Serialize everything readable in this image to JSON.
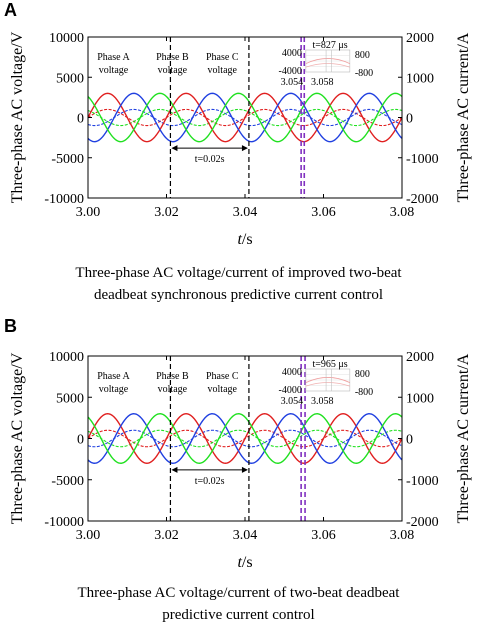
{
  "panels": [
    {
      "letter": "A",
      "caption_lines": [
        "Three-phase AC voltage/current of improved two-beat",
        "deadbeat synchronous predictive current control"
      ],
      "dt_label": "t=827 μs",
      "inset_labels": [
        "4000",
        "-4000",
        "800",
        "-800",
        "3.054",
        "3.058"
      ],
      "chart_data": {
        "type": "line",
        "xlabel": "t/s",
        "ylabel_left": "Three-phase AC voltage/V",
        "ylabel_right": "Three-phase AC current/A",
        "xlim": [
          3.0,
          3.08
        ],
        "ylim_left": [
          -10000,
          10000
        ],
        "ylim_right": [
          -2000,
          2000
        ],
        "x_ticks": [
          "3.00",
          "3.02",
          "3.04",
          "3.06",
          "3.08"
        ],
        "y_ticks_left": [
          "10000",
          "5000",
          "0",
          "-5000",
          "-10000"
        ],
        "y_ticks_right": [
          "2000",
          "1000",
          "0",
          "-1000",
          "-2000"
        ],
        "series": [
          {
            "name": "Phase A voltage",
            "kind": "voltage",
            "amplitude": 3000,
            "frequency_hz": 50,
            "phase_deg": 0,
            "color": "#e02020"
          },
          {
            "name": "Phase B voltage",
            "kind": "voltage",
            "amplitude": 3000,
            "frequency_hz": 50,
            "phase_deg": -120,
            "color": "#2040e0"
          },
          {
            "name": "Phase C voltage",
            "kind": "voltage",
            "amplitude": 3000,
            "frequency_hz": 50,
            "phase_deg": 120,
            "color": "#20e020"
          },
          {
            "name": "",
            "kind": "current",
            "amplitude": 200,
            "frequency_hz": 50,
            "phase_deg": 0,
            "color": "#e02020"
          },
          {
            "name": "",
            "kind": "current",
            "amplitude": 200,
            "frequency_hz": 50,
            "phase_deg": -120,
            "color": "#2040e0"
          },
          {
            "name": "",
            "kind": "current",
            "amplitude": 200,
            "frequency_hz": 50,
            "phase_deg": 120,
            "color": "#20e020"
          }
        ],
        "period_annotation": {
          "label": "t=0.02s",
          "x_start": 3.021,
          "x_end": 3.041
        },
        "markers": [
          {
            "x": 3.0543,
            "color": "#8030c0"
          },
          {
            "x": 3.0551,
            "color": "#8030c0"
          }
        ]
      }
    },
    {
      "letter": "B",
      "caption_lines": [
        "Three-phase AC voltage/current of two-beat deadbeat",
        "predictive current control"
      ],
      "dt_label": "t=965 μs",
      "inset_labels": [
        "4000",
        "-4000",
        "800",
        "-800",
        "3.054",
        "3.058"
      ],
      "chart_data": {
        "type": "line",
        "xlabel": "t/s",
        "ylabel_left": "Three-phase AC voltage/V",
        "ylabel_right": "Three-phase AC current/A",
        "xlim": [
          3.0,
          3.08
        ],
        "ylim_left": [
          -10000,
          10000
        ],
        "ylim_right": [
          -2000,
          2000
        ],
        "x_ticks": [
          "3.00",
          "3.02",
          "3.04",
          "3.06",
          "3.08"
        ],
        "y_ticks_left": [
          "10000",
          "5000",
          "0",
          "-5000",
          "-10000"
        ],
        "y_ticks_right": [
          "2000",
          "1000",
          "0",
          "-1000",
          "-2000"
        ],
        "series": [
          {
            "name": "Phase A voltage",
            "kind": "voltage",
            "amplitude": 3000,
            "frequency_hz": 50,
            "phase_deg": 0,
            "color": "#e02020"
          },
          {
            "name": "Phase B voltage",
            "kind": "voltage",
            "amplitude": 3000,
            "frequency_hz": 50,
            "phase_deg": -120,
            "color": "#2040e0"
          },
          {
            "name": "Phase C voltage",
            "kind": "voltage",
            "amplitude": 3000,
            "frequency_hz": 50,
            "phase_deg": 120,
            "color": "#20e020"
          },
          {
            "name": "",
            "kind": "current",
            "amplitude": 200,
            "frequency_hz": 50,
            "phase_deg": 0,
            "color": "#e02020"
          },
          {
            "name": "",
            "kind": "current",
            "amplitude": 200,
            "frequency_hz": 50,
            "phase_deg": -120,
            "color": "#2040e0"
          },
          {
            "name": "",
            "kind": "current",
            "amplitude": 200,
            "frequency_hz": 50,
            "phase_deg": 120,
            "color": "#20e020"
          }
        ],
        "period_annotation": {
          "label": "t=0.02s",
          "x_start": 3.021,
          "x_end": 3.041
        },
        "markers": [
          {
            "x": 3.0543,
            "color": "#8030c0"
          },
          {
            "x": 3.0553,
            "color": "#8030c0"
          }
        ]
      }
    }
  ]
}
